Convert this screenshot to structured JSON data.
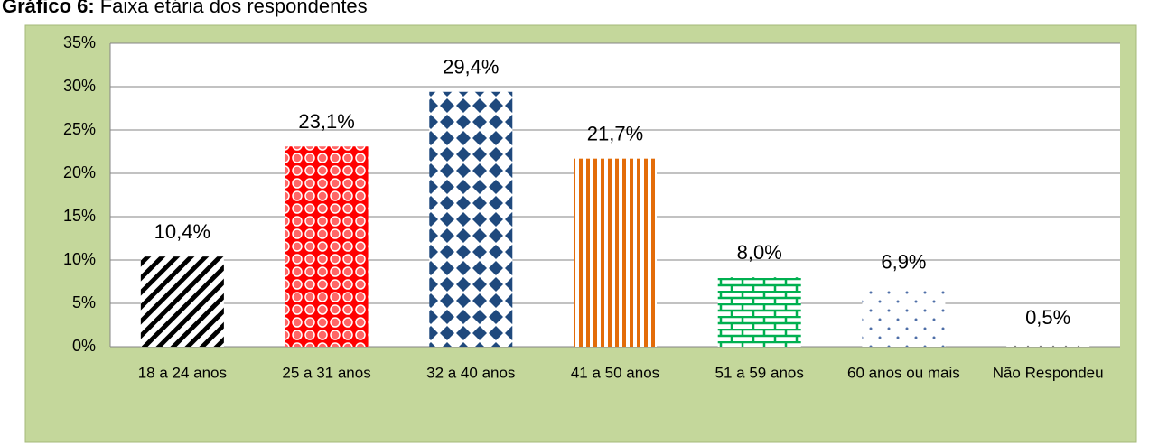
{
  "chart_data": {
    "type": "bar",
    "title_prefix": "Gráfico 6:",
    "title": "Faixa etária dos respondentes",
    "categories": [
      "18 a 24 anos",
      "25 a 31 anos",
      "32 a 40 anos",
      "41 a 50 anos",
      "51 a 59 anos",
      "60 anos ou mais",
      "Não Respondeu"
    ],
    "values": [
      10.4,
      23.1,
      29.4,
      21.7,
      8.0,
      6.9,
      0.5
    ],
    "value_labels": [
      "10,4%",
      "23,1%",
      "29,4%",
      "21,7%",
      "8,0%",
      "6,9%",
      "0,5%"
    ],
    "colors": [
      "#000000",
      "#ff0000",
      "#1f497d",
      "#e36c09",
      "#00b050",
      "#4f6fa8",
      "#7f7f7f"
    ],
    "ylim": [
      0,
      35
    ],
    "yticks": [
      {
        "value": 0,
        "label": "0%"
      },
      {
        "value": 5,
        "label": "5%"
      },
      {
        "value": 10,
        "label": "10%"
      },
      {
        "value": 15,
        "label": "15%"
      },
      {
        "value": 20,
        "label": "20%"
      },
      {
        "value": 25,
        "label": "25%"
      },
      {
        "value": 30,
        "label": "30%"
      },
      {
        "value": 35,
        "label": "35%"
      }
    ],
    "grid": true
  }
}
